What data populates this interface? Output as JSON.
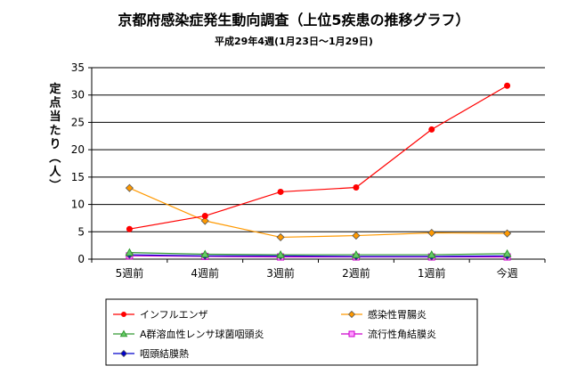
{
  "chart_data": {
    "type": "line",
    "title": "京都府感染症発生動向調査（上位5疾患の推移グラフ）",
    "subtitle": "平成29年4週(1月23日～1月29日)",
    "ylabel": "定点当たり（人）",
    "xlabel": "",
    "categories": [
      "5週前",
      "4週前",
      "3週前",
      "2週前",
      "1週前",
      "今週"
    ],
    "ylim": [
      0,
      35
    ],
    "yticks": [
      0,
      5,
      10,
      15,
      20,
      25,
      30,
      35
    ],
    "grid": "horizontal",
    "legend_position": "bottom",
    "series": [
      {
        "name": "インフルエンザ",
        "values": [
          5.5,
          7.9,
          12.3,
          13.1,
          23.7,
          31.7
        ],
        "color": "#ff0000",
        "marker": "circle"
      },
      {
        "name": "感染性胃腸炎",
        "values": [
          13.0,
          7.0,
          4.0,
          4.3,
          4.8,
          4.7
        ],
        "color": "#ff9900",
        "marker": "diamond"
      },
      {
        "name": "A群溶血性レンサ球菌咽頭炎",
        "values": [
          1.2,
          0.9,
          0.8,
          0.8,
          0.8,
          1.0
        ],
        "color": "#339933",
        "marker": "triangle"
      },
      {
        "name": "流行性角結膜炎",
        "values": [
          0.6,
          0.5,
          0.4,
          0.4,
          0.4,
          0.4
        ],
        "color": "#cc00cc",
        "marker": "square"
      },
      {
        "name": "咽頭結膜熱",
        "values": [
          0.8,
          0.6,
          0.6,
          0.5,
          0.5,
          0.6
        ],
        "color": "#0000cc",
        "marker": "diamond"
      }
    ]
  }
}
